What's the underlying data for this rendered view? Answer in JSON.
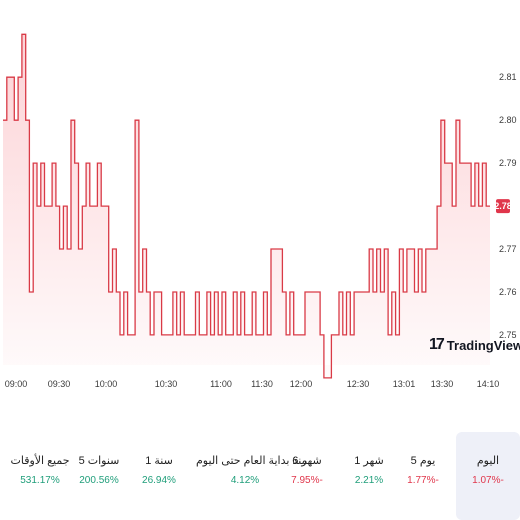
{
  "brand": {
    "mark": "17",
    "name": "TradingView"
  },
  "colors": {
    "line": "#d93a46",
    "fill_top": "rgba(242,54,69,0.22)",
    "fill_bottom": "rgba(242,54,69,0.02)",
    "badge": "#e0364b",
    "positive": "#1f9e7a",
    "negative": "#e0364b"
  },
  "chart_data": {
    "type": "area",
    "title": "",
    "xlabel": "",
    "ylabel": "",
    "ylim": [
      2.743,
      2.821
    ],
    "y_ticks": [
      "2.81",
      "2.80",
      "2.79",
      "2.78",
      "2.77",
      "2.76",
      "2.75"
    ],
    "x_ticks": [
      "09:00",
      "09:30",
      "10:00",
      "10:30",
      "11:00",
      "11:30",
      "12:00",
      "12:30",
      "13:01",
      "13:30",
      "14:10"
    ],
    "last_price": "2.78",
    "values": [
      2.8,
      2.81,
      2.81,
      2.8,
      2.81,
      2.82,
      2.8,
      2.76,
      2.79,
      2.78,
      2.79,
      2.78,
      2.78,
      2.79,
      2.78,
      2.77,
      2.78,
      2.77,
      2.8,
      2.79,
      2.77,
      2.78,
      2.79,
      2.78,
      2.78,
      2.79,
      2.78,
      2.78,
      2.76,
      2.77,
      2.76,
      2.75,
      2.76,
      2.75,
      2.75,
      2.8,
      2.76,
      2.77,
      2.76,
      2.75,
      2.76,
      2.76,
      2.75,
      2.75,
      2.75,
      2.76,
      2.75,
      2.76,
      2.75,
      2.75,
      2.75,
      2.76,
      2.75,
      2.75,
      2.76,
      2.75,
      2.76,
      2.75,
      2.76,
      2.75,
      2.75,
      2.76,
      2.75,
      2.76,
      2.75,
      2.75,
      2.76,
      2.75,
      2.75,
      2.76,
      2.75,
      2.77,
      2.77,
      2.77,
      2.76,
      2.75,
      2.76,
      2.75,
      2.75,
      2.75,
      2.76,
      2.76,
      2.76,
      2.76,
      2.75,
      2.74,
      2.74,
      2.75,
      2.75,
      2.76,
      2.75,
      2.76,
      2.75,
      2.76,
      2.76,
      2.76,
      2.76,
      2.77,
      2.76,
      2.77,
      2.76,
      2.77,
      2.75,
      2.76,
      2.75,
      2.77,
      2.76,
      2.77,
      2.77,
      2.76,
      2.77,
      2.76,
      2.77,
      2.77,
      2.77,
      2.78,
      2.8,
      2.79,
      2.79,
      2.78,
      2.8,
      2.79,
      2.79,
      2.79,
      2.78,
      2.79,
      2.78,
      2.79,
      2.78,
      2.78
    ]
  },
  "periods": [
    {
      "label": "اليوم",
      "value": "1.07%-",
      "tone": "neg",
      "active": true
    },
    {
      "label": "5 يوم",
      "value": "1.77%-",
      "tone": "neg",
      "active": false
    },
    {
      "label": "1 شهر",
      "value": "2.21%",
      "tone": "pos",
      "active": false
    },
    {
      "label": "6 شهر",
      "value": "7.95%-",
      "tone": "neg",
      "active": false
    },
    {
      "label": "منذ بداية العام حتى اليوم",
      "value": "4.12%",
      "tone": "pos",
      "active": false
    },
    {
      "label": "1 سنة",
      "value": "26.94%",
      "tone": "pos",
      "active": false
    },
    {
      "label": "5 سنوات",
      "value": "200.56%",
      "tone": "pos",
      "active": false
    },
    {
      "label": "جميع الأوقات",
      "value": "531.17%",
      "tone": "pos",
      "active": false
    }
  ]
}
